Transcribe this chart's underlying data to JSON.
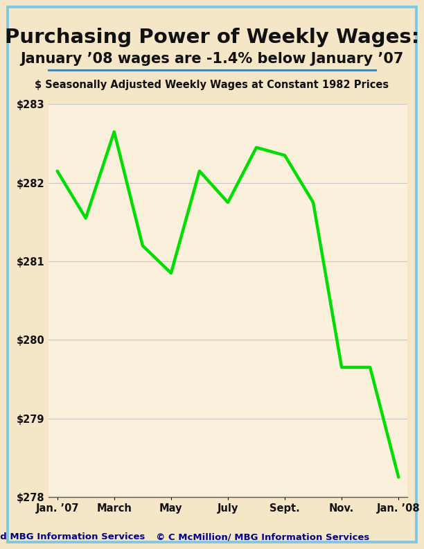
{
  "title_line1": "Purchasing Power of Weekly Wages:",
  "title_line2": "January ’08 wages are -1.4% below January ’07",
  "subtitle": "$ Seasonally Adjusted Weekly Wages at Constant 1982 Prices",
  "footer_left": "BLS and MBG Information Services",
  "footer_right": "© C McMillion/ MBG Information Services",
  "x_labels": [
    "Jan. ’07",
    "March",
    "May",
    "July",
    "Sept.",
    "Nov.",
    "Jan. ’08"
  ],
  "x_tick_positions": [
    0,
    2,
    4,
    6,
    8,
    10,
    12
  ],
  "y_values": [
    282.15,
    281.55,
    282.65,
    281.2,
    280.85,
    282.15,
    281.75,
    282.45,
    282.35,
    281.75,
    279.65,
    279.65,
    278.25
  ],
  "x_data": [
    0,
    1,
    2,
    3,
    4,
    5,
    6,
    7,
    8,
    9,
    10,
    11,
    12
  ],
  "ylim": [
    278.0,
    283.0
  ],
  "yticks": [
    278,
    279,
    280,
    281,
    282,
    283
  ],
  "line_color": "#00DD00",
  "line_width": 3.2,
  "bg_color": "#F5E6C8",
  "plot_bg_color": "#FAF0DC",
  "border_color": "#7EC8E3",
  "grid_color": "#C8C8C8",
  "title1_fontsize": 21,
  "title2_fontsize": 15,
  "subtitle_fontsize": 10.5,
  "tick_fontsize": 10.5,
  "footer_fontsize": 9.5,
  "underline_color": "#4488BB"
}
